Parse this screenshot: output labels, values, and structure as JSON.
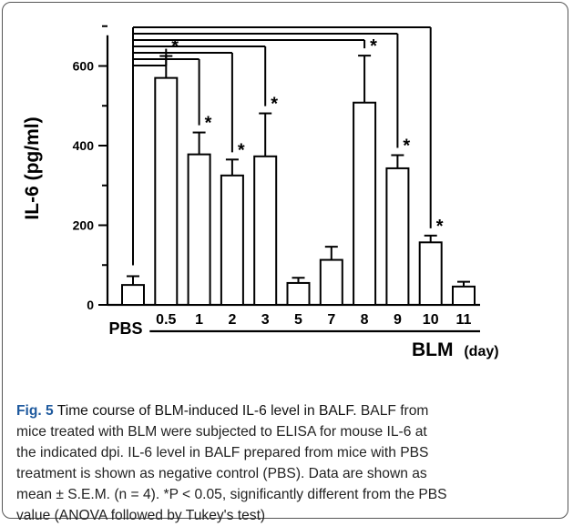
{
  "chart_data": {
    "type": "bar",
    "ylabel": "IL-6 (pg/ml)",
    "ylim": [
      0,
      700
    ],
    "y_ticks": [
      "0",
      "200",
      "400",
      "600"
    ],
    "categories": [
      "PBS",
      "0.5",
      "1",
      "2",
      "3",
      "5",
      "7",
      "8",
      "9",
      "10",
      "11"
    ],
    "values": [
      50,
      570,
      378,
      325,
      373,
      55,
      113,
      508,
      343,
      157,
      46
    ],
    "errors": [
      22,
      55,
      55,
      40,
      108,
      13,
      33,
      118,
      33,
      17,
      12
    ],
    "significant": [
      false,
      true,
      true,
      true,
      true,
      false,
      false,
      true,
      true,
      true,
      false
    ],
    "significance_mark": "*",
    "group_label": "BLM",
    "group_unit": "(day)",
    "grid": false,
    "legend": "none",
    "bar_fill": "#ffffff",
    "stroke_color": "#000000"
  },
  "caption": {
    "label": "Fig. 5",
    "title": " Time course of BLM-induced IL-6 level in BALF.",
    "lines": [
      " BALF from",
      "mice treated with BLM were subjected to ELISA for mouse IL-6 at",
      "the indicated dpi. IL-6 level in BALF prepared from mice with PBS",
      "treatment is shown as negative control (PBS). Data are shown as",
      "mean ± S.E.M. (n = 4). *P < 0.05, significantly different from the PBS",
      "value (ANOVA followed by Tukey's test)"
    ],
    "label_color": "#1f5a9e"
  }
}
